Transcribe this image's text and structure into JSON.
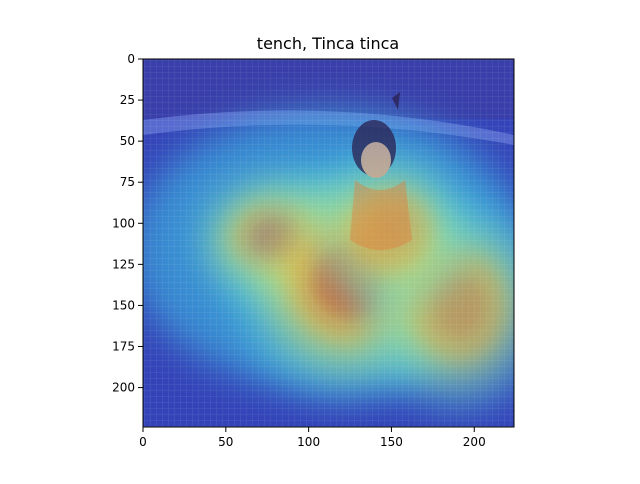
{
  "chart_data": {
    "type": "heatmap",
    "title": "tench, Tinca tinca",
    "xlabel": "",
    "ylabel": "",
    "xlim": [
      0,
      224
    ],
    "ylim": [
      224,
      0
    ],
    "x_ticks": [
      0,
      50,
      100,
      150,
      200
    ],
    "y_ticks": [
      0,
      25,
      50,
      75,
      100,
      125,
      150,
      175,
      200
    ],
    "grid": false,
    "colormap": "jet",
    "overlay_on_image": true,
    "image_description_colors": {
      "background_pool": "#3a4fc4",
      "hot": "#c81e1e",
      "warm": "#f0a030",
      "mid": "#f2e84a",
      "cool": "#4fd0e0"
    },
    "hotspots": [
      {
        "x": 82,
        "y": 110,
        "intensity": 1.0,
        "rx": 32,
        "ry": 26
      },
      {
        "x": 125,
        "y": 135,
        "intensity": 0.85,
        "rx": 45,
        "ry": 45
      },
      {
        "x": 190,
        "y": 150,
        "intensity": 0.7,
        "rx": 35,
        "ry": 40
      },
      {
        "x": 150,
        "y": 105,
        "intensity": 0.65,
        "rx": 30,
        "ry": 30
      }
    ]
  }
}
